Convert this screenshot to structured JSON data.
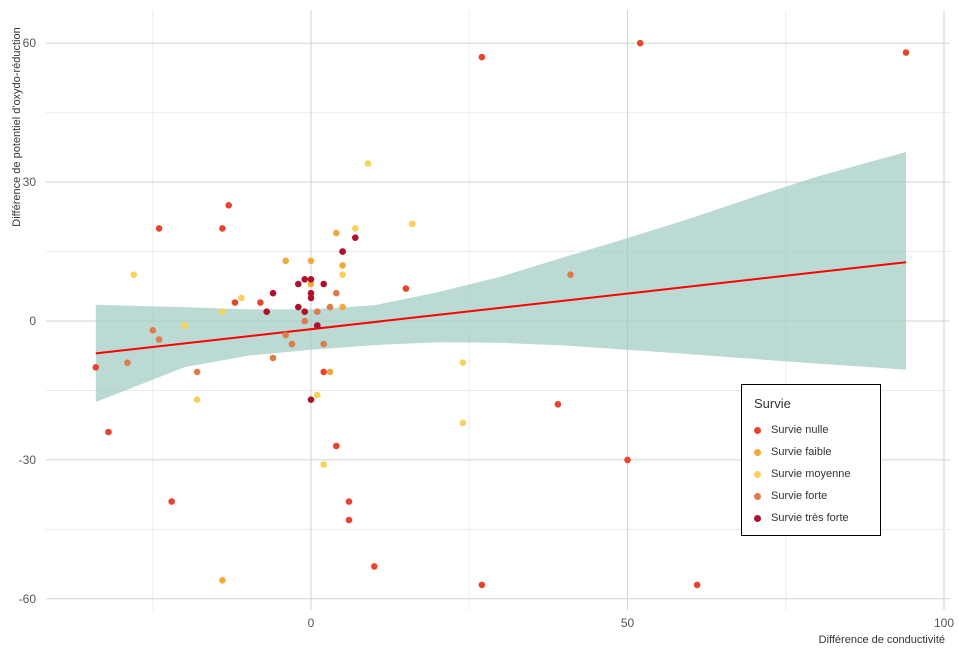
{
  "chart_data": {
    "type": "scatter",
    "xlabel": "Différence de conductivité",
    "ylabel": "Différence de potentiel d'oxydo-réduction",
    "xlim": [
      -38,
      101
    ],
    "ylim": [
      -63,
      64
    ],
    "x_ticks": [
      "0",
      "50",
      "100"
    ],
    "x_tick_values": [
      0,
      50,
      100
    ],
    "y_ticks": [
      "60",
      "30",
      "0",
      "-30",
      "-60"
    ],
    "y_tick_values": [
      60,
      30,
      0,
      -30,
      -60
    ],
    "grid": true,
    "legend": {
      "title": "Survie",
      "position": "bottom-right"
    },
    "colors": {
      "nulle": "#e8432d",
      "faible": "#f2a93b",
      "moyenne": "#f7d25a",
      "forte": "#e07a4a",
      "tres_forte": "#b0112a",
      "fit_line": "#ff0000",
      "ribbon": "#9ccbc0"
    },
    "series": [
      {
        "name": "Survie nulle",
        "key": "nulle",
        "points": [
          [
            -34,
            -10
          ],
          [
            -32,
            -24
          ],
          [
            -24,
            20
          ],
          [
            -22,
            -39
          ],
          [
            -14,
            20
          ],
          [
            -13,
            25
          ],
          [
            -12,
            4
          ],
          [
            -8,
            4
          ],
          [
            1,
            -1
          ],
          [
            2,
            -11
          ],
          [
            4,
            -27
          ],
          [
            6,
            -39
          ],
          [
            6,
            -43
          ],
          [
            10,
            -53
          ],
          [
            15,
            7
          ],
          [
            27,
            57
          ],
          [
            27,
            -57
          ],
          [
            39,
            -18
          ],
          [
            50,
            -30
          ],
          [
            52,
            60
          ],
          [
            61,
            -57
          ],
          [
            94,
            58
          ]
        ]
      },
      {
        "name": "Survie faible",
        "key": "faible",
        "points": [
          [
            -14,
            -56
          ],
          [
            -4,
            13
          ],
          [
            0,
            13
          ],
          [
            0,
            8
          ],
          [
            3,
            -11
          ],
          [
            4,
            19
          ],
          [
            5,
            12
          ],
          [
            5,
            3
          ]
        ]
      },
      {
        "name": "Survie moyenne",
        "key": "moyenne",
        "points": [
          [
            -28,
            10
          ],
          [
            -20,
            -1
          ],
          [
            -18,
            -17
          ],
          [
            -14,
            2
          ],
          [
            -11,
            5
          ],
          [
            1,
            -16
          ],
          [
            2,
            -31
          ],
          [
            5,
            10
          ],
          [
            7,
            20
          ],
          [
            9,
            34
          ],
          [
            16,
            21
          ],
          [
            24,
            -9
          ],
          [
            24,
            -22
          ]
        ]
      },
      {
        "name": "Survie forte",
        "key": "forte",
        "points": [
          [
            -29,
            -9
          ],
          [
            -25,
            -2
          ],
          [
            -24,
            -4
          ],
          [
            -18,
            -11
          ],
          [
            -6,
            -8
          ],
          [
            -4,
            -3
          ],
          [
            -3,
            -5
          ],
          [
            -1,
            0
          ],
          [
            1,
            2
          ],
          [
            2,
            -5
          ],
          [
            3,
            3
          ],
          [
            4,
            6
          ],
          [
            5,
            15
          ],
          [
            41,
            10
          ]
        ]
      },
      {
        "name": "Survie très forte",
        "key": "tres_forte",
        "points": [
          [
            -7,
            2
          ],
          [
            -6,
            6
          ],
          [
            -2,
            8
          ],
          [
            -2,
            3
          ],
          [
            -1,
            9
          ],
          [
            -1,
            2
          ],
          [
            0,
            9
          ],
          [
            0,
            6
          ],
          [
            0,
            5
          ],
          [
            0,
            -17
          ],
          [
            1,
            -1
          ],
          [
            2,
            8
          ],
          [
            5,
            15
          ],
          [
            7,
            18
          ]
        ]
      }
    ],
    "fit_line": {
      "x": [
        -34,
        94
      ],
      "y": [
        -7,
        12.7
      ]
    },
    "confidence_ribbon": {
      "x": [
        -34,
        -20,
        -10,
        0,
        10,
        20,
        30,
        40,
        50,
        60,
        70,
        80,
        94
      ],
      "lower": [
        -17.5,
        -10,
        -7.5,
        -6.2,
        -5.2,
        -4.6,
        -4.7,
        -5.3,
        -6.2,
        -7.2,
        -8.2,
        -9.2,
        -10.5
      ],
      "upper": [
        3.5,
        3,
        2.5,
        2.5,
        3.4,
        6.2,
        9.6,
        13.8,
        17.9,
        22.2,
        26.8,
        31.2,
        36.5
      ]
    }
  }
}
